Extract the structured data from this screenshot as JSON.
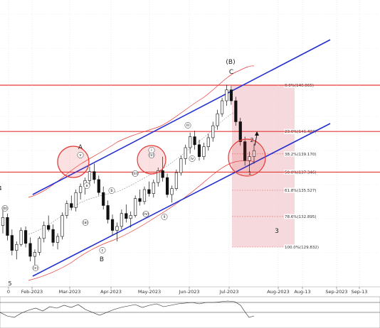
{
  "chart_data": {
    "type": "candlestick",
    "x_ticks": [
      "0",
      "Feb-2023",
      "Mar-2023",
      "Apr-2023",
      "May-2023",
      "Jun-2023",
      "Jul-2023",
      "Aug-2023",
      "Aug-13",
      "Sep-2023",
      "Sep-13"
    ],
    "fib_levels": [
      {
        "label": "0.0%(146.065)",
        "value": 146.065
      },
      {
        "label": "23.6%(141.423)",
        "value": 141.423
      },
      {
        "label": "38.2%(139.170)",
        "value": 139.17
      },
      {
        "label": "50.0%(137.346)",
        "value": 137.346
      },
      {
        "label": "61.8%(135.527)",
        "value": 135.527
      },
      {
        "label": "78.6%(132.895)",
        "value": 132.895
      },
      {
        "label": "100.0%(129.832)",
        "value": 129.832
      }
    ],
    "horizontal_lines": [
      146.065,
      141.423,
      137.346
    ],
    "wave_labels": [
      "(B)",
      "C",
      "A",
      "B",
      "5",
      "1",
      "2",
      "3",
      "v",
      "(v)",
      "iii",
      "(iii)",
      "iv",
      "(iv)",
      "i",
      "ii",
      "a",
      "b",
      "c",
      "(a)",
      "(b)",
      "(c)",
      "4"
    ],
    "candles": [
      {
        "o": 132.0,
        "h": 133.5,
        "l": 131.2,
        "c": 132.8
      },
      {
        "o": 132.8,
        "h": 133.2,
        "l": 130.5,
        "c": 131.0
      },
      {
        "o": 131.0,
        "h": 131.6,
        "l": 129.0,
        "c": 129.5
      },
      {
        "o": 129.5,
        "h": 130.4,
        "l": 128.6,
        "c": 130.1
      },
      {
        "o": 130.1,
        "h": 131.8,
        "l": 129.9,
        "c": 131.5
      },
      {
        "o": 131.5,
        "h": 131.9,
        "l": 129.8,
        "c": 130.2
      },
      {
        "o": 130.2,
        "h": 130.8,
        "l": 128.4,
        "c": 128.9
      },
      {
        "o": 128.9,
        "h": 129.6,
        "l": 127.8,
        "c": 129.3
      },
      {
        "o": 129.3,
        "h": 130.9,
        "l": 129.0,
        "c": 130.7
      },
      {
        "o": 130.7,
        "h": 132.4,
        "l": 130.3,
        "c": 132.0
      },
      {
        "o": 132.0,
        "h": 133.0,
        "l": 131.4,
        "c": 131.6
      },
      {
        "o": 131.6,
        "h": 132.1,
        "l": 129.9,
        "c": 130.3
      },
      {
        "o": 130.3,
        "h": 131.2,
        "l": 129.6,
        "c": 130.9
      },
      {
        "o": 130.9,
        "h": 133.3,
        "l": 130.6,
        "c": 133.0
      },
      {
        "o": 133.0,
        "h": 134.5,
        "l": 132.7,
        "c": 134.2
      },
      {
        "o": 134.2,
        "h": 135.0,
        "l": 133.5,
        "c": 133.8
      },
      {
        "o": 133.8,
        "h": 135.6,
        "l": 133.4,
        "c": 135.3
      },
      {
        "o": 135.3,
        "h": 136.2,
        "l": 134.6,
        "c": 135.9
      },
      {
        "o": 135.9,
        "h": 136.8,
        "l": 135.1,
        "c": 136.5
      },
      {
        "o": 136.5,
        "h": 137.9,
        "l": 136.0,
        "c": 137.4
      },
      {
        "o": 137.4,
        "h": 138.2,
        "l": 136.2,
        "c": 136.6
      },
      {
        "o": 136.6,
        "h": 137.0,
        "l": 135.0,
        "c": 135.3
      },
      {
        "o": 135.3,
        "h": 135.9,
        "l": 133.6,
        "c": 134.0
      },
      {
        "o": 134.0,
        "h": 134.5,
        "l": 132.2,
        "c": 132.6
      },
      {
        "o": 132.6,
        "h": 133.1,
        "l": 131.0,
        "c": 131.5
      },
      {
        "o": 131.5,
        "h": 132.3,
        "l": 130.4,
        "c": 131.9
      },
      {
        "o": 131.9,
        "h": 133.6,
        "l": 131.6,
        "c": 133.2
      },
      {
        "o": 133.2,
        "h": 134.1,
        "l": 132.3,
        "c": 132.7
      },
      {
        "o": 132.7,
        "h": 133.4,
        "l": 131.8,
        "c": 133.0
      },
      {
        "o": 133.0,
        "h": 135.0,
        "l": 132.8,
        "c": 134.7
      },
      {
        "o": 134.7,
        "h": 135.6,
        "l": 134.0,
        "c": 134.4
      },
      {
        "o": 134.4,
        "h": 135.9,
        "l": 134.1,
        "c": 135.6
      },
      {
        "o": 135.6,
        "h": 136.4,
        "l": 134.9,
        "c": 135.2
      },
      {
        "o": 135.2,
        "h": 136.6,
        "l": 134.8,
        "c": 136.3
      },
      {
        "o": 136.3,
        "h": 137.8,
        "l": 135.9,
        "c": 137.5
      },
      {
        "o": 137.5,
        "h": 138.9,
        "l": 136.4,
        "c": 136.8
      },
      {
        "o": 136.8,
        "h": 137.2,
        "l": 134.8,
        "c": 135.1
      },
      {
        "o": 135.1,
        "h": 136.0,
        "l": 134.3,
        "c": 135.7
      },
      {
        "o": 135.7,
        "h": 137.6,
        "l": 135.5,
        "c": 137.3
      },
      {
        "o": 137.3,
        "h": 139.0,
        "l": 137.0,
        "c": 138.7
      },
      {
        "o": 138.7,
        "h": 140.1,
        "l": 138.1,
        "c": 139.8
      },
      {
        "o": 139.8,
        "h": 141.3,
        "l": 139.2,
        "c": 140.9
      },
      {
        "o": 140.9,
        "h": 141.5,
        "l": 139.6,
        "c": 140.1
      },
      {
        "o": 140.1,
        "h": 140.6,
        "l": 138.5,
        "c": 138.9
      },
      {
        "o": 138.9,
        "h": 140.3,
        "l": 138.6,
        "c": 139.9
      },
      {
        "o": 139.9,
        "h": 141.2,
        "l": 139.5,
        "c": 140.8
      },
      {
        "o": 140.8,
        "h": 142.4,
        "l": 140.4,
        "c": 142.0
      },
      {
        "o": 142.0,
        "h": 143.6,
        "l": 141.6,
        "c": 143.2
      },
      {
        "o": 143.2,
        "h": 144.8,
        "l": 142.9,
        "c": 144.5
      },
      {
        "o": 144.5,
        "h": 146.1,
        "l": 144.0,
        "c": 145.6
      },
      {
        "o": 145.6,
        "h": 146.0,
        "l": 144.1,
        "c": 144.5
      },
      {
        "o": 144.5,
        "h": 144.9,
        "l": 142.0,
        "c": 142.4
      },
      {
        "o": 142.4,
        "h": 142.8,
        "l": 140.0,
        "c": 140.4
      },
      {
        "o": 140.4,
        "h": 140.9,
        "l": 138.0,
        "c": 138.5
      },
      {
        "o": 138.5,
        "h": 139.4,
        "l": 137.4,
        "c": 138.9
      },
      {
        "o": 138.9,
        "h": 140.2,
        "l": 138.2,
        "c": 139.5
      }
    ],
    "channel": {
      "upper": [
        [
          0,
          137.3
        ],
        [
          1,
          152.2
        ]
      ],
      "lower": [
        [
          0,
          129.2
        ],
        [
          1,
          141.9
        ]
      ]
    },
    "oscillator": {
      "levels": [
        70,
        30
      ]
    }
  }
}
